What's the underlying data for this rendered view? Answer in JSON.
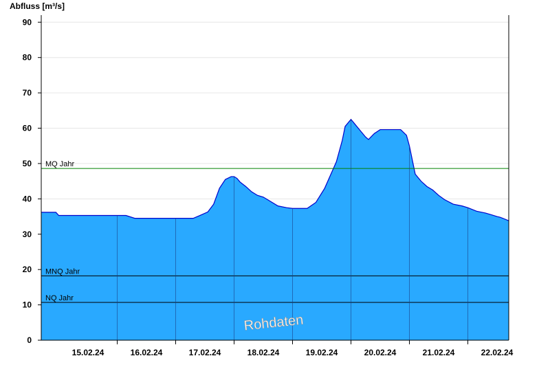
{
  "chart_data": {
    "type": "area",
    "title": "",
    "ylabel": "Abfluss [m³/s]",
    "xlabel": "",
    "ylim": [
      0,
      92
    ],
    "y_ticks": [
      0,
      10,
      20,
      30,
      40,
      50,
      60,
      70,
      80,
      90
    ],
    "x_tick_labels": [
      "15.02.24",
      "16.02.24",
      "17.02.24",
      "18.02.24",
      "19.02.24",
      "20.02.24",
      "21.02.24",
      "22.02.24"
    ],
    "x_unit": "days since 15.02.24 00:00",
    "x_range": [
      -0.3,
      7.7
    ],
    "grid": true,
    "fill_color": "#29a9ff",
    "line_color": "#0000cc",
    "series": [
      {
        "x": [
          -0.3,
          -0.05,
          0.0,
          0.25,
          0.5,
          0.75,
          1.0,
          1.15,
          1.3,
          1.5,
          1.75,
          2.0,
          2.3,
          2.4,
          2.55,
          2.65,
          2.75,
          2.85,
          2.95,
          3.0,
          3.05,
          3.1,
          3.2,
          3.3,
          3.4,
          3.5,
          3.6,
          3.75,
          3.9,
          4.0,
          4.15,
          4.25,
          4.4,
          4.55,
          4.75,
          4.85,
          4.9,
          5.0,
          5.05,
          5.15,
          5.25,
          5.3,
          5.4,
          5.5,
          5.6,
          5.75,
          5.85,
          5.95,
          6.0,
          6.1,
          6.2,
          6.3,
          6.4,
          6.5,
          6.6,
          6.75,
          6.9,
          7.0,
          7.15,
          7.3,
          7.4,
          7.5,
          7.55,
          7.6,
          7.7
        ],
        "y": [
          36.2,
          36.2,
          35.3,
          35.3,
          35.3,
          35.3,
          35.3,
          35.3,
          34.5,
          34.5,
          34.5,
          34.5,
          34.5,
          35.2,
          36.3,
          38.5,
          43.0,
          45.5,
          46.3,
          46.3,
          45.8,
          44.8,
          43.5,
          42.0,
          41.0,
          40.5,
          39.5,
          38.0,
          37.5,
          37.3,
          37.3,
          37.3,
          39.0,
          43.0,
          50.5,
          56.5,
          60.5,
          62.5,
          61.5,
          59.5,
          57.5,
          56.8,
          58.5,
          59.6,
          59.6,
          59.6,
          59.6,
          58.0,
          55.0,
          47.0,
          45.0,
          43.5,
          42.5,
          41.0,
          39.8,
          38.5,
          38.0,
          37.5,
          36.5,
          36.0,
          35.5,
          35.0,
          34.8,
          34.5,
          33.8
        ]
      }
    ],
    "reference_lines": [
      {
        "name": "MQ Jahr",
        "value": 48.6,
        "color": "#008000"
      },
      {
        "name": "MNQ Jahr",
        "value": 18.2,
        "color": "#000000"
      },
      {
        "name": "NQ Jahr",
        "value": 10.7,
        "color": "#000000"
      }
    ],
    "watermark": "Rohdaten"
  }
}
